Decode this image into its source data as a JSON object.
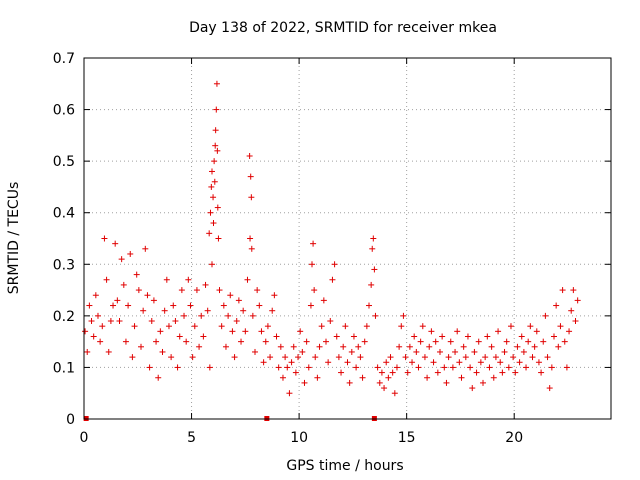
{
  "chart_data": {
    "type": "scatter",
    "title": "Day 138 of 2022, SRMTID for receiver mkea",
    "xlabel": "GPS time / hours",
    "ylabel": "SRMTID / TECUs",
    "xlim": [
      0,
      24.5
    ],
    "ylim": [
      0,
      0.7
    ],
    "xticks": [
      0,
      5,
      10,
      15,
      20
    ],
    "xtick_labels": [
      "0",
      "5",
      "10",
      "15",
      "20"
    ],
    "yticks": [
      0,
      0.1,
      0.2,
      0.3,
      0.4,
      0.5,
      0.6,
      0.7
    ],
    "ytick_labels": [
      "0",
      "0.1",
      "0.2",
      "0.3",
      "0.4",
      "0.5",
      "0.6",
      "0.7"
    ],
    "grid": true,
    "marker": "plus",
    "color": "#e00000",
    "series": [
      {
        "name": "SRMTID",
        "points": [
          [
            0.05,
            0.17
          ],
          [
            0.15,
            0.13
          ],
          [
            0.25,
            0.22
          ],
          [
            0.35,
            0.19
          ],
          [
            0.45,
            0.16
          ],
          [
            0.55,
            0.24
          ],
          [
            0.65,
            0.2
          ],
          [
            0.75,
            0.15
          ],
          [
            0.85,
            0.18
          ],
          [
            0.95,
            0.35
          ],
          [
            1.05,
            0.27
          ],
          [
            1.15,
            0.13
          ],
          [
            1.25,
            0.19
          ],
          [
            1.35,
            0.22
          ],
          [
            1.45,
            0.34
          ],
          [
            1.55,
            0.23
          ],
          [
            1.65,
            0.19
          ],
          [
            1.75,
            0.31
          ],
          [
            1.85,
            0.26
          ],
          [
            1.95,
            0.15
          ],
          [
            2.05,
            0.22
          ],
          [
            2.15,
            0.32
          ],
          [
            2.25,
            0.12
          ],
          [
            2.35,
            0.18
          ],
          [
            2.45,
            0.28
          ],
          [
            2.55,
            0.25
          ],
          [
            2.65,
            0.14
          ],
          [
            2.75,
            0.21
          ],
          [
            2.85,
            0.33
          ],
          [
            2.95,
            0.24
          ],
          [
            3.05,
            0.1
          ],
          [
            3.15,
            0.19
          ],
          [
            3.25,
            0.23
          ],
          [
            3.35,
            0.15
          ],
          [
            3.45,
            0.08
          ],
          [
            3.55,
            0.17
          ],
          [
            3.65,
            0.13
          ],
          [
            3.75,
            0.21
          ],
          [
            3.85,
            0.27
          ],
          [
            3.95,
            0.18
          ],
          [
            4.05,
            0.12
          ],
          [
            4.15,
            0.22
          ],
          [
            4.25,
            0.19
          ],
          [
            4.35,
            0.1
          ],
          [
            4.45,
            0.16
          ],
          [
            4.55,
            0.25
          ],
          [
            4.65,
            0.2
          ],
          [
            4.75,
            0.15
          ],
          [
            4.85,
            0.27
          ],
          [
            4.95,
            0.22
          ],
          [
            5.05,
            0.12
          ],
          [
            5.15,
            0.18
          ],
          [
            5.25,
            0.25
          ],
          [
            5.35,
            0.14
          ],
          [
            5.45,
            0.2
          ],
          [
            5.55,
            0.16
          ],
          [
            5.65,
            0.26
          ],
          [
            5.75,
            0.21
          ],
          [
            5.85,
            0.1
          ],
          [
            5.95,
            0.3
          ],
          [
            5.82,
            0.36
          ],
          [
            5.88,
            0.4
          ],
          [
            5.92,
            0.45
          ],
          [
            5.95,
            0.48
          ],
          [
            6.0,
            0.43
          ],
          [
            6.02,
            0.38
          ],
          [
            6.05,
            0.5
          ],
          [
            6.08,
            0.46
          ],
          [
            6.1,
            0.53
          ],
          [
            6.12,
            0.56
          ],
          [
            6.15,
            0.6
          ],
          [
            6.18,
            0.65
          ],
          [
            6.2,
            0.52
          ],
          [
            6.22,
            0.41
          ],
          [
            6.25,
            0.35
          ],
          [
            6.3,
            0.25
          ],
          [
            6.4,
            0.18
          ],
          [
            6.5,
            0.22
          ],
          [
            6.6,
            0.14
          ],
          [
            6.7,
            0.2
          ],
          [
            6.8,
            0.24
          ],
          [
            6.9,
            0.17
          ],
          [
            7.0,
            0.12
          ],
          [
            7.1,
            0.19
          ],
          [
            7.2,
            0.23
          ],
          [
            7.3,
            0.15
          ],
          [
            7.4,
            0.21
          ],
          [
            7.5,
            0.17
          ],
          [
            7.6,
            0.27
          ],
          [
            7.7,
            0.51
          ],
          [
            7.75,
            0.47
          ],
          [
            7.78,
            0.43
          ],
          [
            7.72,
            0.35
          ],
          [
            7.8,
            0.33
          ],
          [
            7.85,
            0.2
          ],
          [
            7.95,
            0.13
          ],
          [
            8.05,
            0.25
          ],
          [
            8.15,
            0.22
          ],
          [
            8.25,
            0.17
          ],
          [
            8.35,
            0.11
          ],
          [
            8.45,
            0.15
          ],
          [
            8.55,
            0.18
          ],
          [
            8.65,
            0.12
          ],
          [
            8.75,
            0.21
          ],
          [
            8.85,
            0.24
          ],
          [
            8.95,
            0.16
          ],
          [
            9.05,
            0.1
          ],
          [
            9.15,
            0.14
          ],
          [
            9.25,
            0.08
          ],
          [
            9.35,
            0.12
          ],
          [
            9.45,
            0.1
          ],
          [
            9.55,
            0.05
          ],
          [
            9.65,
            0.11
          ],
          [
            9.75,
            0.14
          ],
          [
            9.85,
            0.09
          ],
          [
            9.95,
            0.12
          ],
          [
            10.05,
            0.17
          ],
          [
            10.15,
            0.13
          ],
          [
            10.25,
            0.07
          ],
          [
            10.35,
            0.15
          ],
          [
            10.45,
            0.1
          ],
          [
            10.55,
            0.22
          ],
          [
            10.6,
            0.3
          ],
          [
            10.65,
            0.34
          ],
          [
            10.7,
            0.25
          ],
          [
            10.75,
            0.12
          ],
          [
            10.85,
            0.08
          ],
          [
            10.95,
            0.14
          ],
          [
            11.05,
            0.18
          ],
          [
            11.15,
            0.23
          ],
          [
            11.25,
            0.15
          ],
          [
            11.35,
            0.11
          ],
          [
            11.45,
            0.19
          ],
          [
            11.55,
            0.27
          ],
          [
            11.65,
            0.3
          ],
          [
            11.75,
            0.16
          ],
          [
            11.85,
            0.12
          ],
          [
            11.95,
            0.09
          ],
          [
            12.05,
            0.14
          ],
          [
            12.15,
            0.18
          ],
          [
            12.25,
            0.11
          ],
          [
            12.35,
            0.07
          ],
          [
            12.45,
            0.13
          ],
          [
            12.55,
            0.16
          ],
          [
            12.65,
            0.1
          ],
          [
            12.75,
            0.14
          ],
          [
            12.85,
            0.12
          ],
          [
            12.95,
            0.08
          ],
          [
            13.05,
            0.15
          ],
          [
            13.15,
            0.18
          ],
          [
            13.25,
            0.22
          ],
          [
            13.35,
            0.26
          ],
          [
            13.4,
            0.33
          ],
          [
            13.45,
            0.35
          ],
          [
            13.5,
            0.29
          ],
          [
            13.55,
            0.2
          ],
          [
            13.65,
            0.1
          ],
          [
            13.75,
            0.07
          ],
          [
            13.85,
            0.09
          ],
          [
            13.95,
            0.06
          ],
          [
            14.05,
            0.11
          ],
          [
            14.15,
            0.08
          ],
          [
            14.25,
            0.12
          ],
          [
            14.35,
            0.09
          ],
          [
            14.45,
            0.05
          ],
          [
            14.55,
            0.1
          ],
          [
            14.65,
            0.14
          ],
          [
            14.75,
            0.18
          ],
          [
            14.85,
            0.2
          ],
          [
            14.95,
            0.12
          ],
          [
            15.05,
            0.09
          ],
          [
            15.15,
            0.14
          ],
          [
            15.25,
            0.11
          ],
          [
            15.35,
            0.16
          ],
          [
            15.45,
            0.13
          ],
          [
            15.55,
            0.1
          ],
          [
            15.65,
            0.15
          ],
          [
            15.75,
            0.18
          ],
          [
            15.85,
            0.12
          ],
          [
            15.95,
            0.08
          ],
          [
            16.05,
            0.14
          ],
          [
            16.15,
            0.17
          ],
          [
            16.25,
            0.11
          ],
          [
            16.35,
            0.15
          ],
          [
            16.45,
            0.09
          ],
          [
            16.55,
            0.13
          ],
          [
            16.65,
            0.16
          ],
          [
            16.75,
            0.1
          ],
          [
            16.85,
            0.07
          ],
          [
            16.95,
            0.12
          ],
          [
            17.05,
            0.15
          ],
          [
            17.15,
            0.1
          ],
          [
            17.25,
            0.13
          ],
          [
            17.35,
            0.17
          ],
          [
            17.45,
            0.11
          ],
          [
            17.55,
            0.08
          ],
          [
            17.65,
            0.14
          ],
          [
            17.75,
            0.12
          ],
          [
            17.85,
            0.16
          ],
          [
            17.95,
            0.1
          ],
          [
            18.05,
            0.06
          ],
          [
            18.15,
            0.13
          ],
          [
            18.25,
            0.09
          ],
          [
            18.35,
            0.15
          ],
          [
            18.45,
            0.11
          ],
          [
            18.55,
            0.07
          ],
          [
            18.65,
            0.12
          ],
          [
            18.75,
            0.16
          ],
          [
            18.85,
            0.1
          ],
          [
            18.95,
            0.14
          ],
          [
            19.05,
            0.08
          ],
          [
            19.15,
            0.12
          ],
          [
            19.25,
            0.17
          ],
          [
            19.35,
            0.11
          ],
          [
            19.45,
            0.09
          ],
          [
            19.55,
            0.13
          ],
          [
            19.65,
            0.15
          ],
          [
            19.75,
            0.1
          ],
          [
            19.85,
            0.18
          ],
          [
            19.95,
            0.12
          ],
          [
            20.05,
            0.09
          ],
          [
            20.15,
            0.14
          ],
          [
            20.25,
            0.11
          ],
          [
            20.35,
            0.16
          ],
          [
            20.45,
            0.13
          ],
          [
            20.55,
            0.1
          ],
          [
            20.65,
            0.15
          ],
          [
            20.75,
            0.18
          ],
          [
            20.85,
            0.12
          ],
          [
            20.95,
            0.14
          ],
          [
            21.05,
            0.17
          ],
          [
            21.15,
            0.11
          ],
          [
            21.25,
            0.09
          ],
          [
            21.35,
            0.15
          ],
          [
            21.45,
            0.2
          ],
          [
            21.55,
            0.12
          ],
          [
            21.65,
            0.06
          ],
          [
            21.75,
            0.1
          ],
          [
            21.85,
            0.16
          ],
          [
            21.95,
            0.22
          ],
          [
            22.05,
            0.14
          ],
          [
            22.15,
            0.18
          ],
          [
            22.25,
            0.25
          ],
          [
            22.35,
            0.15
          ],
          [
            22.45,
            0.1
          ],
          [
            22.55,
            0.17
          ],
          [
            22.65,
            0.21
          ],
          [
            22.75,
            0.25
          ],
          [
            22.85,
            0.19
          ],
          [
            22.95,
            0.23
          ]
        ]
      }
    ],
    "gaps": [
      [
        0.1,
        0
      ],
      [
        8.5,
        0
      ],
      [
        13.5,
        0
      ]
    ]
  }
}
